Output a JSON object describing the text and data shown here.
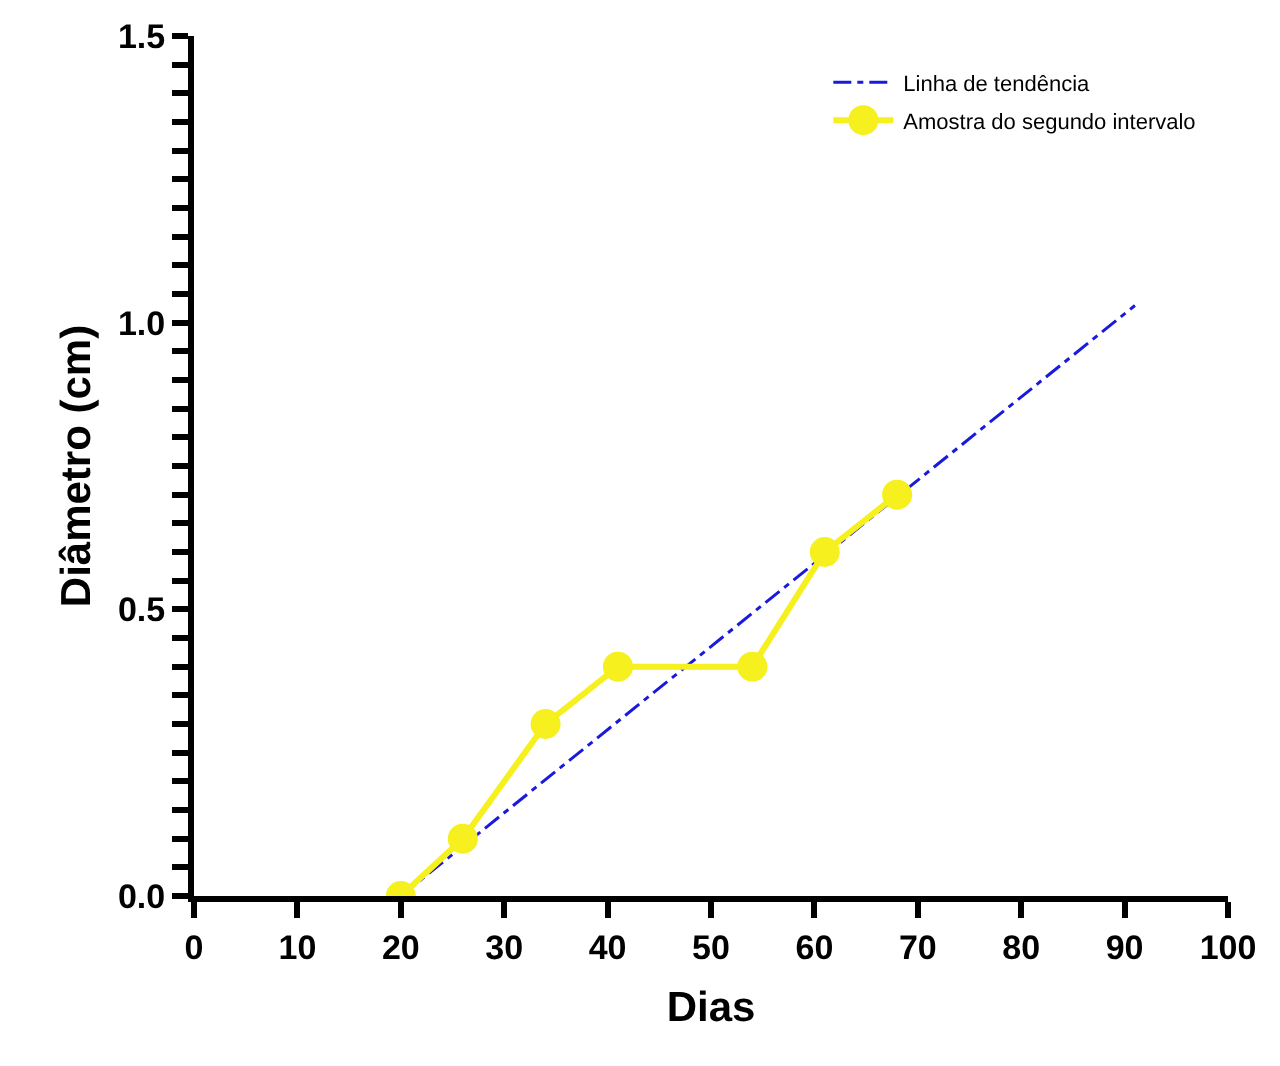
{
  "chart_data": {
    "type": "line",
    "xlabel": "Dias",
    "ylabel": "Diâmetro (cm)",
    "xlim": [
      0,
      100
    ],
    "xticks": [
      0,
      10,
      20,
      30,
      40,
      50,
      60,
      70,
      80,
      90,
      100
    ],
    "ylim": [
      0,
      1.5
    ],
    "yticks": [
      {
        "value": 0,
        "label": "0.0"
      },
      {
        "value": 0.05,
        "label": null
      },
      {
        "value": 0.1,
        "label": null
      },
      {
        "value": 0.15,
        "label": null
      },
      {
        "value": 0.2,
        "label": null
      },
      {
        "value": 0.25,
        "label": null
      },
      {
        "value": 0.3,
        "label": null
      },
      {
        "value": 0.35,
        "label": null
      },
      {
        "value": 0.4,
        "label": null
      },
      {
        "value": 0.45,
        "label": null
      },
      {
        "value": 0.5,
        "label": "0.5"
      },
      {
        "value": 0.55,
        "label": null
      },
      {
        "value": 0.6,
        "label": null
      },
      {
        "value": 0.65,
        "label": null
      },
      {
        "value": 0.7,
        "label": null
      },
      {
        "value": 0.75,
        "label": null
      },
      {
        "value": 0.8,
        "label": null
      },
      {
        "value": 0.85,
        "label": null
      },
      {
        "value": 0.9,
        "label": null
      },
      {
        "value": 0.95,
        "label": null
      },
      {
        "value": 1.0,
        "label": "1.0"
      },
      {
        "value": 1.05,
        "label": null
      },
      {
        "value": 1.1,
        "label": null
      },
      {
        "value": 1.15,
        "label": null
      },
      {
        "value": 1.2,
        "label": null
      },
      {
        "value": 1.25,
        "label": null
      },
      {
        "value": 1.3,
        "label": null
      },
      {
        "value": 1.35,
        "label": null
      },
      {
        "value": 1.4,
        "label": null
      },
      {
        "value": 1.45,
        "label": null
      },
      {
        "value": 1.5,
        "label": "1.5"
      }
    ],
    "grid": false,
    "legend": "top right",
    "series": [
      {
        "name": "Linha de tendência",
        "color": "#1a1adc",
        "marker": "none",
        "line_style": "dashed",
        "x": [
          20,
          91
        ],
        "values": [
          0,
          1.03
        ]
      },
      {
        "name": "Amostra do segundo intervalo",
        "color": "#f5f01e",
        "marker": "circle",
        "line_style": "solid",
        "x": [
          20,
          26,
          34,
          41,
          54,
          61,
          68
        ],
        "values": [
          0,
          0.1,
          0.3,
          0.4,
          0.4,
          0.6,
          0.7
        ]
      }
    ]
  }
}
